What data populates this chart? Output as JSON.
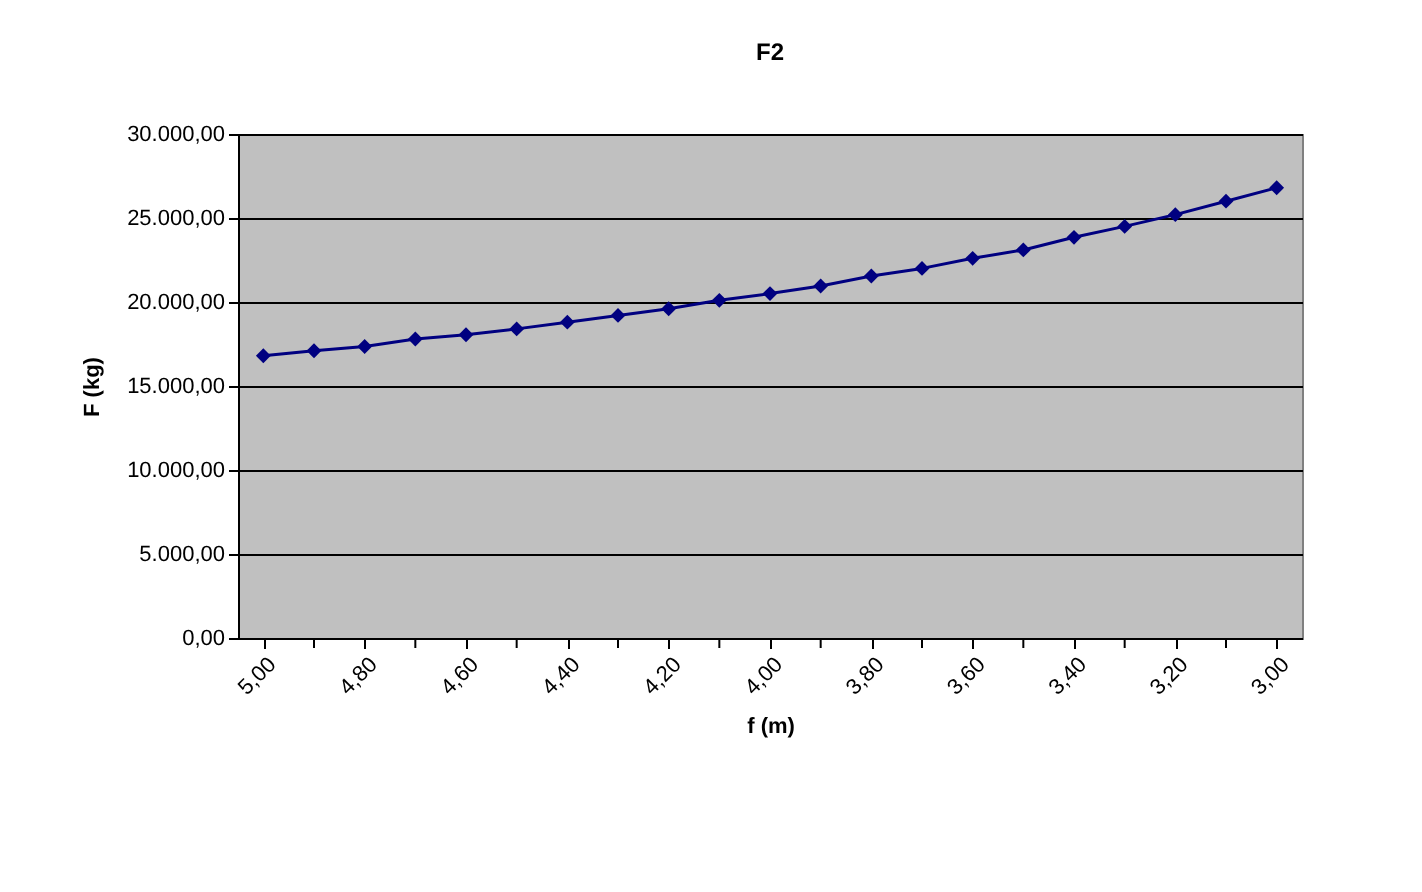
{
  "chart_data": {
    "type": "line",
    "title": "F2",
    "xlabel": "f (m)",
    "ylabel": "F (kg)",
    "x": [
      5.0,
      4.9,
      4.8,
      4.7,
      4.6,
      4.5,
      4.4,
      4.3,
      4.2,
      4.1,
      4.0,
      3.9,
      3.8,
      3.7,
      3.6,
      3.5,
      3.4,
      3.3,
      3.2,
      3.1,
      3.0
    ],
    "series": [
      {
        "color": "#000080",
        "values": [
          16800,
          17100,
          17350,
          17800,
          18050,
          18400,
          18800,
          19200,
          19600,
          20100,
          20500,
          20950,
          21550,
          22000,
          22600,
          23100,
          23850,
          24500,
          25200,
          26000,
          26800
        ]
      }
    ],
    "xlim": [
      5.05,
      2.95
    ],
    "xticks": [
      {
        "value": 5.0,
        "label": "5,00"
      },
      {
        "value": 4.9,
        "label": null
      },
      {
        "value": 4.8,
        "label": "4,80"
      },
      {
        "value": 4.7,
        "label": null
      },
      {
        "value": 4.6,
        "label": "4,60"
      },
      {
        "value": 4.5,
        "label": null
      },
      {
        "value": 4.4,
        "label": "4,40"
      },
      {
        "value": 4.3,
        "label": null
      },
      {
        "value": 4.2,
        "label": "4,20"
      },
      {
        "value": 4.1,
        "label": null
      },
      {
        "value": 4.0,
        "label": "4,00"
      },
      {
        "value": 3.9,
        "label": null
      },
      {
        "value": 3.8,
        "label": "3,80"
      },
      {
        "value": 3.7,
        "label": null
      },
      {
        "value": 3.6,
        "label": "3,60"
      },
      {
        "value": 3.5,
        "label": null
      },
      {
        "value": 3.4,
        "label": "3,40"
      },
      {
        "value": 3.3,
        "label": null
      },
      {
        "value": 3.2,
        "label": "3,20"
      },
      {
        "value": 3.1,
        "label": null
      },
      {
        "value": 3.0,
        "label": "3,00"
      }
    ],
    "ylim": [
      0,
      30000
    ],
    "yticks": [
      {
        "value": 0,
        "label": "0,00"
      },
      {
        "value": 5000,
        "label": "5.000,00"
      },
      {
        "value": 10000,
        "label": "10.000,00"
      },
      {
        "value": 15000,
        "label": "15.000,00"
      },
      {
        "value": 20000,
        "label": "20.000,00"
      },
      {
        "value": 25000,
        "label": "25.000,00"
      },
      {
        "value": 30000,
        "label": "30.000,00"
      }
    ],
    "grid": "y",
    "legend": false,
    "marker": "diamond",
    "line_style": "solid"
  }
}
